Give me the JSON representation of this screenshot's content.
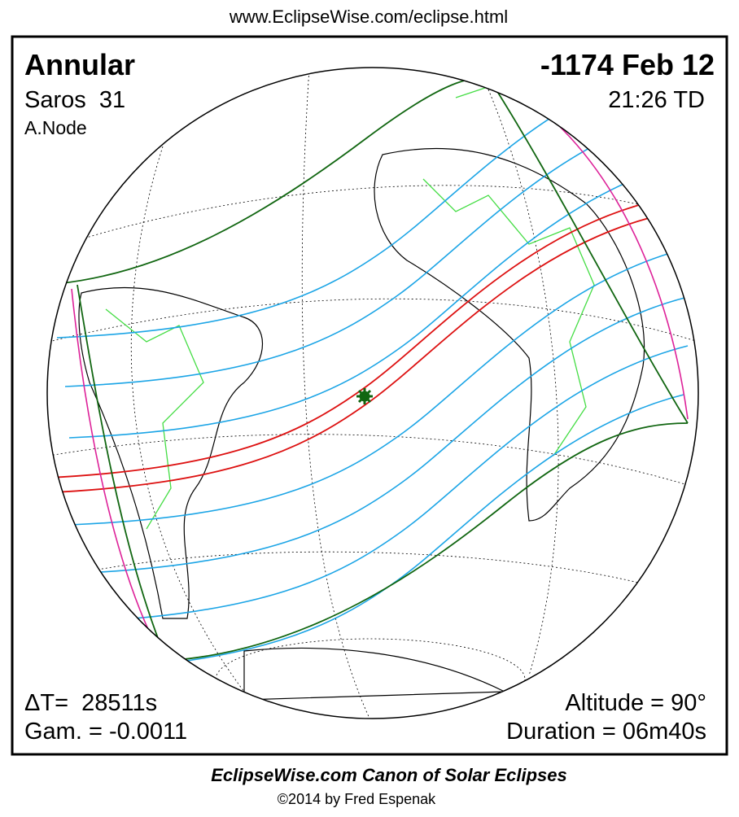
{
  "header": {
    "url": "www.EclipseWise.com/eclipse.html"
  },
  "eclipse": {
    "type": "Annular",
    "date": "-1174 Feb 12",
    "saros": "Saros  31",
    "time": "21:26 TD",
    "node": "A.Node",
    "delta_t": "ΔT=  28511s",
    "gamma": "Gam. = -0.0011",
    "altitude": "Altitude = 90°",
    "duration": "Duration = 06m40s"
  },
  "footer": {
    "title": "EclipseWise.com Canon of Solar Eclipses",
    "copyright": "©2014 by Fred Espenak"
  }
}
